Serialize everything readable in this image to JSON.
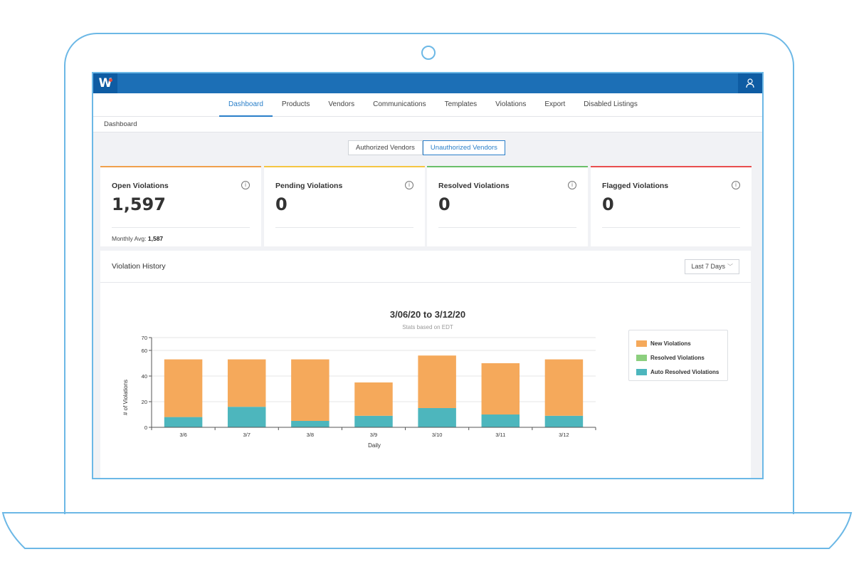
{
  "app": {
    "logo_text": "W",
    "user_icon": "user-icon"
  },
  "nav": {
    "items": [
      {
        "label": "Dashboard",
        "active": true
      },
      {
        "label": "Products",
        "active": false
      },
      {
        "label": "Vendors",
        "active": false
      },
      {
        "label": "Communications",
        "active": false
      },
      {
        "label": "Templates",
        "active": false
      },
      {
        "label": "Violations",
        "active": false
      },
      {
        "label": "Export",
        "active": false
      },
      {
        "label": "Disabled Listings",
        "active": false
      }
    ]
  },
  "breadcrumb": "Dashboard",
  "vendor_toggle": {
    "authorized": "Authorized Vendors",
    "unauthorized": "Unauthorized Vendors",
    "selected": "unauthorized"
  },
  "stats": [
    {
      "label": "Open Violations",
      "value": "1,597",
      "color": "#f0a04b",
      "footer_label": "Monthly Avg:",
      "footer_value": "1,587"
    },
    {
      "label": "Pending Violations",
      "value": "0",
      "color": "#f5c542"
    },
    {
      "label": "Resolved Violations",
      "value": "0",
      "color": "#6abf69"
    },
    {
      "label": "Flagged Violations",
      "value": "0",
      "color": "#e84e4e"
    }
  ],
  "history": {
    "title": "Violation History",
    "range": "Last 7 Days"
  },
  "chart_data": {
    "type": "bar",
    "stacked": true,
    "title": "3/06/20 to 3/12/20",
    "subtitle": "Stats based on EDT",
    "xlabel": "Daily",
    "ylabel": "# of Violations",
    "ylim": [
      0,
      70
    ],
    "yticks": [
      0,
      20,
      40,
      60,
      70
    ],
    "grid": true,
    "legend_position": "right",
    "categories": [
      "3/6",
      "3/7",
      "3/8",
      "3/9",
      "3/10",
      "3/11",
      "3/12"
    ],
    "series": [
      {
        "name": "Auto Resolved Violations",
        "color": "#4db6bd",
        "values": [
          8,
          16,
          5,
          9,
          15,
          10,
          9
        ]
      },
      {
        "name": "Resolved Violations",
        "color": "#8ccf7e",
        "values": [
          0,
          0,
          0,
          0,
          0,
          0,
          0
        ]
      },
      {
        "name": "New Violations",
        "color": "#f5a95b",
        "values": [
          45,
          37,
          48,
          26,
          41,
          40,
          44
        ]
      }
    ],
    "legend_order": [
      "New Violations",
      "Resolved Violations",
      "Auto Resolved Violations"
    ]
  }
}
